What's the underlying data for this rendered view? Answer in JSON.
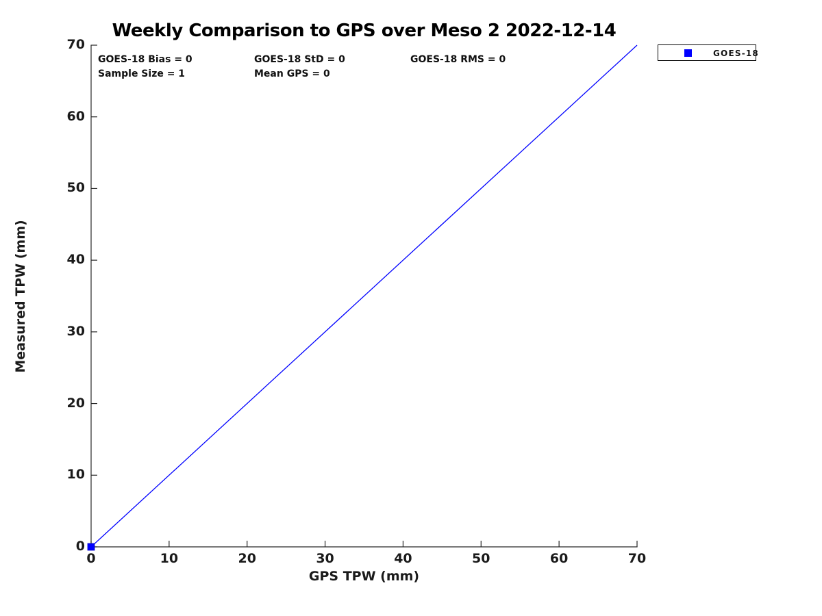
{
  "chart_data": {
    "type": "scatter",
    "title": "Weekly Comparison to GPS over Meso 2 2022-12-14",
    "xlabel": "GPS TPW (mm)",
    "ylabel": "Measured TPW (mm)",
    "xlim": [
      0,
      70
    ],
    "ylim": [
      0,
      70
    ],
    "xticks": [
      0,
      10,
      20,
      30,
      40,
      50,
      60,
      70
    ],
    "yticks": [
      0,
      10,
      20,
      30,
      40,
      50,
      60,
      70
    ],
    "grid": false,
    "tick_direction": "in",
    "legend": {
      "position": "top-right-outside",
      "entries": [
        {
          "label": "GOES-18",
          "marker": "square",
          "color": "#0000ff"
        }
      ]
    },
    "annotations": [
      {
        "text": "GOES-18 Bias = 0",
        "row": 0,
        "col": 0
      },
      {
        "text": "GOES-18 StD = 0",
        "row": 0,
        "col": 1
      },
      {
        "text": "GOES-18 RMS = 0",
        "row": 0,
        "col": 2
      },
      {
        "text": "Sample Size = 1",
        "row": 1,
        "col": 0
      },
      {
        "text": "Mean GPS = 0",
        "row": 1,
        "col": 1
      }
    ],
    "series": [
      {
        "name": "one-to-one-line",
        "type": "line",
        "color": "#0000ff",
        "width": 1.3,
        "points": [
          {
            "x": 0,
            "y": 0
          },
          {
            "x": 70,
            "y": 70
          }
        ]
      },
      {
        "name": "GOES-18",
        "type": "scatter",
        "marker": "square",
        "marker_size": 10,
        "color": "#0000ff",
        "points": [
          {
            "x": 0,
            "y": 0
          }
        ]
      }
    ],
    "colors": {
      "axis": "#262626",
      "tick_text": "#1a1a1a",
      "title_text": "#000000",
      "background": "#ffffff"
    }
  }
}
